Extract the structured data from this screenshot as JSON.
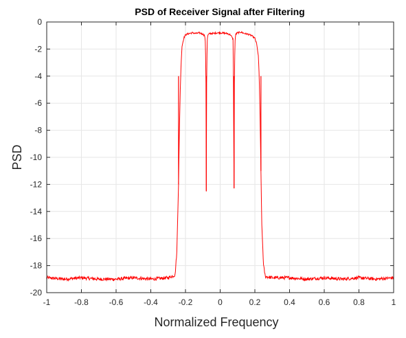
{
  "chart_data": {
    "type": "line",
    "title": "PSD of Receiver Signal after Filtering",
    "xlabel": "Normalized Frequency",
    "ylabel": "PSD",
    "xlim": [
      -1,
      1
    ],
    "ylim": [
      -20,
      0
    ],
    "xticks": [
      "-1",
      "-0.8",
      "-0.6",
      "-0.4",
      "-0.2",
      "0",
      "0.2",
      "0.4",
      "0.6",
      "0.8",
      "1"
    ],
    "yticks": [
      "0",
      "-2",
      "-4",
      "-6",
      "-8",
      "-10",
      "-12",
      "-14",
      "-16",
      "-18",
      "-20"
    ],
    "grid": true,
    "series": [
      {
        "color": "#ff0000",
        "x": [
          -1.0,
          -0.9,
          -0.8,
          -0.7,
          -0.6,
          -0.5,
          -0.4,
          -0.3,
          -0.26,
          -0.25,
          -0.24,
          -0.235,
          -0.23,
          -0.225,
          -0.22,
          -0.21,
          -0.2,
          -0.18,
          -0.16,
          -0.14,
          -0.12,
          -0.1,
          -0.09,
          -0.085,
          -0.082,
          -0.08,
          -0.078,
          -0.075,
          -0.07,
          -0.06,
          -0.04,
          -0.02,
          0.0,
          0.02,
          0.04,
          0.06,
          0.075,
          0.08,
          0.082,
          0.085,
          0.09,
          0.1,
          0.12,
          0.14,
          0.16,
          0.18,
          0.2,
          0.21,
          0.22,
          0.225,
          0.23,
          0.235,
          0.24,
          0.25,
          0.26,
          0.3,
          0.4,
          0.5,
          0.6,
          0.7,
          0.8,
          0.9,
          1.0
        ],
        "y": [
          -18.9,
          -19.0,
          -18.9,
          -19.0,
          -19.0,
          -18.9,
          -19.0,
          -18.9,
          -18.7,
          -17.0,
          -12.0,
          -8.0,
          -5.0,
          -3.0,
          -1.8,
          -1.2,
          -0.95,
          -0.85,
          -0.8,
          -0.85,
          -0.8,
          -0.9,
          -1.0,
          -1.5,
          -4.5,
          -12.5,
          -4.5,
          -1.3,
          -0.95,
          -0.85,
          -0.85,
          -0.8,
          -0.8,
          -0.82,
          -0.85,
          -0.95,
          -1.3,
          -12.3,
          -4.5,
          -1.5,
          -0.9,
          -0.8,
          -0.75,
          -0.85,
          -0.9,
          -1.0,
          -1.2,
          -1.6,
          -2.5,
          -4.0,
          -7.0,
          -11.0,
          -15.0,
          -18.0,
          -18.8,
          -18.9,
          -18.9,
          -19.0,
          -18.9,
          -19.0,
          -18.9,
          -19.0,
          -18.9
        ]
      }
    ]
  }
}
